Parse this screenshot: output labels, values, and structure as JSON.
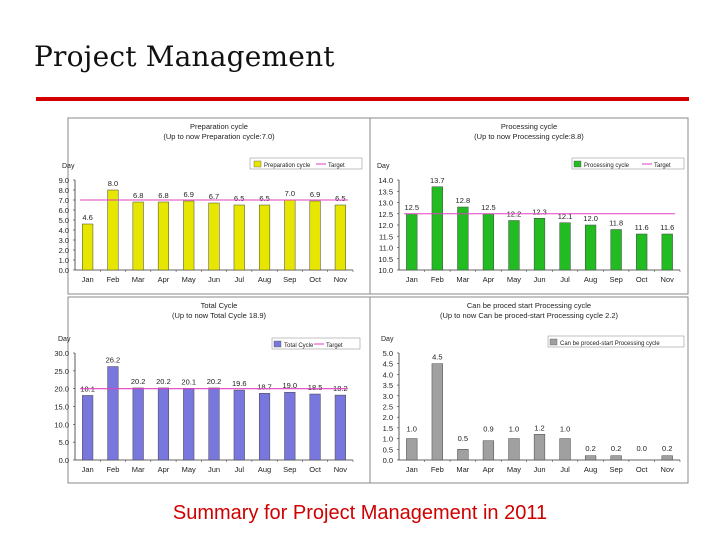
{
  "slide": {
    "title": "Project Management",
    "caption": "Summary for Project Management in 2011",
    "rule_color": "#d40000",
    "caption_color": "#d00000"
  },
  "chart_data": [
    {
      "type": "bar",
      "title": "Preparation cycle",
      "subtitle": "(Up to now Preparation cycle:7.0)",
      "ylabel": "Day",
      "categories": [
        "Jan",
        "Feb",
        "Mar",
        "Apr",
        "May",
        "Jun",
        "Jul",
        "Aug",
        "Sep",
        "Oct",
        "Nov"
      ],
      "values": [
        4.6,
        8.0,
        6.8,
        6.8,
        6.9,
        6.7,
        6.5,
        6.5,
        7.0,
        6.9,
        6.5
      ],
      "value_labels": [
        "4.6",
        "8.0",
        "6.8",
        "6.8",
        "6.9",
        "6.7",
        "6.5",
        "6.5",
        "7.0",
        "6.9",
        "6.5"
      ],
      "target": 7.0,
      "ylim": [
        0,
        9
      ],
      "yticks": [
        "0.0",
        "1.0",
        "2.0",
        "3.0",
        "4.0",
        "5.0",
        "6.0",
        "7.0",
        "8.0",
        "9.0"
      ],
      "legend": [
        "Preparation cycle",
        "Target"
      ],
      "bar_color": "#e6e600",
      "target_color": "#e040c0"
    },
    {
      "type": "bar",
      "title": "Processing cycle",
      "subtitle": "(Up to now Processing cycle:8.8)",
      "ylabel": "Day",
      "categories": [
        "Jan",
        "Feb",
        "Mar",
        "Apr",
        "May",
        "Jun",
        "Jul",
        "Aug",
        "Sep",
        "Oct",
        "Nov"
      ],
      "values": [
        12.5,
        13.7,
        12.8,
        12.5,
        12.2,
        12.3,
        12.1,
        12.0,
        11.8,
        11.6,
        11.6
      ],
      "value_labels": [
        "12.5",
        "13.7",
        "12.8",
        "12.5",
        "12.2",
        "12.3",
        "12.1",
        "12.0",
        "11.8",
        "11.6",
        "11.6"
      ],
      "target": 12.5,
      "ylim": [
        10,
        14
      ],
      "yticks": [
        "10.0",
        "10.5",
        "11.0",
        "11.5",
        "12.0",
        "12.5",
        "13.0",
        "13.5",
        "14.0"
      ],
      "legend": [
        "Processing cycle",
        "Target"
      ],
      "bar_color": "#22bb22",
      "target_color": "#e040c0"
    },
    {
      "type": "bar",
      "title": "Total Cycle",
      "subtitle": "(Up to now Total Cycle 18.9)",
      "ylabel": "Day",
      "categories": [
        "Jan",
        "Feb",
        "Mar",
        "Apr",
        "May",
        "Jun",
        "Jul",
        "Aug",
        "Sep",
        "Oct",
        "Nov"
      ],
      "values": [
        18.1,
        26.2,
        20.2,
        20.2,
        20.1,
        20.2,
        19.6,
        18.7,
        19.0,
        18.5,
        18.2
      ],
      "value_labels": [
        "18.1",
        "26.2",
        "20.2",
        "20.2",
        "20.1",
        "20.2",
        "19.6",
        "18.7",
        "19.0",
        "18.5",
        "18.2"
      ],
      "target": 20.0,
      "ylim": [
        0,
        30
      ],
      "yticks": [
        "0.0",
        "5.0",
        "10.0",
        "15.0",
        "20.0",
        "25.0",
        "30.0"
      ],
      "legend": [
        "Total Cycle",
        "Target"
      ],
      "bar_color": "#7777dd",
      "target_color": "#e040c0"
    },
    {
      "type": "bar",
      "title": "Can be proced start Processing cycle",
      "subtitle": "(Up to now Can be proced-start Processing cycle 2.2)",
      "ylabel": "Day",
      "categories": [
        "Jan",
        "Feb",
        "Mar",
        "Apr",
        "May",
        "Jun",
        "Jul",
        "Aug",
        "Sep",
        "Oct",
        "Nov"
      ],
      "values": [
        1.0,
        4.5,
        0.5,
        0.9,
        1.0,
        1.2,
        1.0,
        0.2,
        0.2,
        0.0,
        0.2
      ],
      "value_labels": [
        "1.0",
        "4.5",
        "0.5",
        "0.9",
        "1.0",
        "1.2",
        "1.0",
        "0.2",
        "0.2",
        "0.0",
        "0.2"
      ],
      "ylim": [
        0,
        5
      ],
      "yticks": [
        "0.0",
        "0.5",
        "1.0",
        "1.5",
        "2.0",
        "2.5",
        "3.0",
        "3.5",
        "4.0",
        "4.5",
        "5.0"
      ],
      "legend": [
        "Can be proced-start Processing cycle"
      ],
      "bar_color": "#a0a0a0"
    }
  ]
}
